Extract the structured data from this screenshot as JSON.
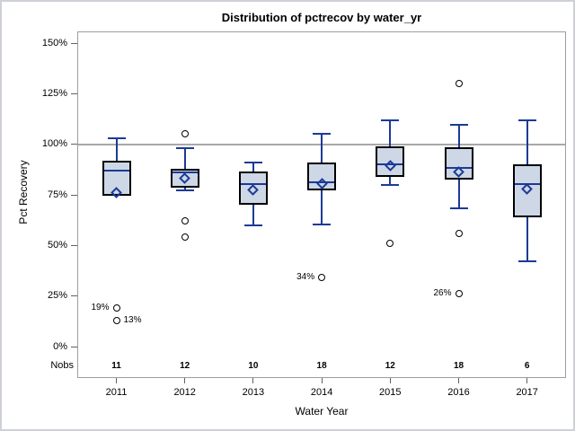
{
  "window_title": "Distribution of pctrecov by water_yr",
  "colors": {
    "box_fill": "#cdd7e6",
    "box_border": "#000000",
    "stat_blue": "#1c3a96",
    "reference_line": "#a8a8a8",
    "plot_frame": "#9d9d9d",
    "tick": "#616161",
    "text": "#000000",
    "background": "#ffffff"
  },
  "chart_data": {
    "type": "box",
    "title": "Distribution of pctrecov by water_yr",
    "xlabel": "Water Year",
    "ylabel": "Pct Recovery",
    "nobs_row_label": "Nobs",
    "y_ticks": [
      "150%",
      "125%",
      "100%",
      "75%",
      "50%",
      "25%",
      "0%"
    ],
    "y_tick_values": [
      150,
      125,
      100,
      75,
      50,
      25,
      0
    ],
    "ylim": [
      0,
      155
    ],
    "reference_line_y": 100,
    "grid": false,
    "legend": "none",
    "categories": [
      "2011",
      "2012",
      "2013",
      "2014",
      "2015",
      "2016",
      "2017"
    ],
    "boxes": [
      {
        "category": "2011",
        "nobs": "11",
        "whisker_high": 103,
        "q3": 92,
        "median": 87,
        "q1": 74.5,
        "mean": 76,
        "whisker_low": 74.5,
        "outliers": [
          {
            "value": 19,
            "label": "19%",
            "label_side": "left"
          },
          {
            "value": 13,
            "label": "13%",
            "label_side": "right"
          }
        ]
      },
      {
        "category": "2012",
        "nobs": "12",
        "whisker_high": 98,
        "q3": 88,
        "median": 86,
        "q1": 78.5,
        "mean": 83,
        "whisker_low": 77,
        "outliers": [
          {
            "value": 105,
            "label": "",
            "label_side": ""
          },
          {
            "value": 62,
            "label": "",
            "label_side": ""
          },
          {
            "value": 54,
            "label": "",
            "label_side": ""
          }
        ]
      },
      {
        "category": "2013",
        "nobs": "10",
        "whisker_high": 91,
        "q3": 86.5,
        "median": 80.5,
        "q1": 70,
        "mean": 77.5,
        "whisker_low": 60,
        "outliers": []
      },
      {
        "category": "2014",
        "nobs": "18",
        "whisker_high": 105,
        "q3": 91,
        "median": 81,
        "q1": 77,
        "mean": 80.5,
        "whisker_low": 60.5,
        "outliers": [
          {
            "value": 34,
            "label": "34%",
            "label_side": "left"
          }
        ]
      },
      {
        "category": "2015",
        "nobs": "12",
        "whisker_high": 112,
        "q3": 99,
        "median": 90,
        "q1": 84,
        "mean": 89.5,
        "whisker_low": 80,
        "outliers": [
          {
            "value": 51,
            "label": "",
            "label_side": ""
          }
        ]
      },
      {
        "category": "2016",
        "nobs": "18",
        "whisker_high": 109.5,
        "q3": 98.5,
        "median": 88.5,
        "q1": 82.5,
        "mean": 86.5,
        "whisker_low": 68.5,
        "outliers": [
          {
            "value": 130,
            "label": "",
            "label_side": ""
          },
          {
            "value": 56,
            "label": "",
            "label_side": ""
          },
          {
            "value": 26,
            "label": "26%",
            "label_side": "left"
          }
        ]
      },
      {
        "category": "2017",
        "nobs": "6",
        "whisker_high": 112,
        "q3": 90,
        "median": 80.5,
        "q1": 64,
        "mean": 78,
        "whisker_low": 42,
        "outliers": []
      }
    ]
  }
}
